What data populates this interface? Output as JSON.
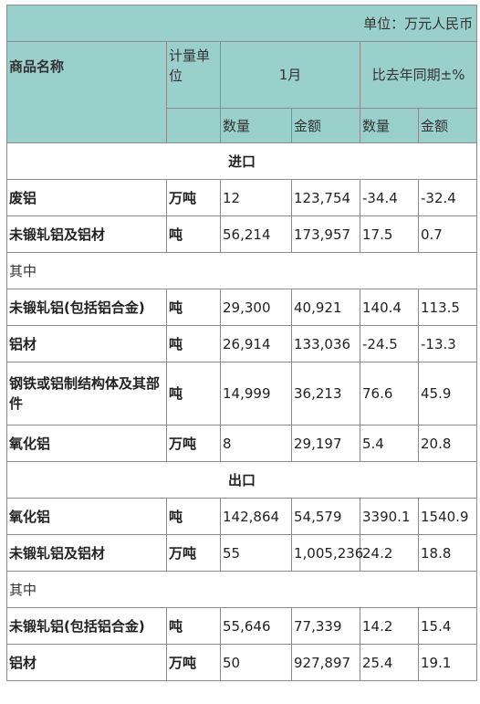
{
  "unit_label": "单位：万元人民币",
  "headers": {
    "name": "商品名称",
    "unit_col": "计量单位",
    "period": "1月",
    "yoy": "比去年同期±%",
    "qty": "数量",
    "amt": "金额",
    "qty2": "数量",
    "amt2": "金额"
  },
  "sections": [
    {
      "title": "进口",
      "rows": [
        {
          "name": "废铝",
          "unit": "万吨",
          "qty": "12",
          "amt": "123,754",
          "qty_pct": "-34.4",
          "amt_pct": "-32.4"
        },
        {
          "name": "未锻轧铝及铝材",
          "unit": "吨",
          "qty": "56,214",
          "amt": "173,957",
          "qty_pct": "17.5",
          "amt_pct": "0.7"
        },
        {
          "subhead": "其中"
        },
        {
          "name": "未锻轧铝(包括铝合金)",
          "unit": "吨",
          "qty": "29,300",
          "amt": "40,921",
          "qty_pct": "140.4",
          "amt_pct": "113.5"
        },
        {
          "name": "铝材",
          "unit": "吨",
          "qty": "26,914",
          "amt": "133,036",
          "qty_pct": "-24.5",
          "amt_pct": "-13.3"
        },
        {
          "name": "钢铁或铝制结构体及其部件",
          "unit": "吨",
          "qty": "14,999",
          "amt": "36,213",
          "qty_pct": "76.6",
          "amt_pct": "45.9",
          "tall": true
        },
        {
          "name": "氧化铝",
          "unit": "万吨",
          "qty": "8",
          "amt": "29,197",
          "qty_pct": "5.4",
          "amt_pct": "20.8"
        }
      ]
    },
    {
      "title": "出口",
      "rows": [
        {
          "name": "氧化铝",
          "unit": "吨",
          "qty": "142,864",
          "amt": "54,579",
          "qty_pct": "3390.1",
          "amt_pct": "1540.9"
        },
        {
          "name": "未锻轧铝及铝材",
          "unit": "万吨",
          "qty": "55",
          "amt": "1,005,236",
          "qty_pct": "24.2",
          "amt_pct": "18.8"
        },
        {
          "subhead": "其中"
        },
        {
          "name": "未锻轧铝(包括铝合金)",
          "unit": "吨",
          "qty": "55,646",
          "amt": "77,339",
          "qty_pct": "14.2",
          "amt_pct": "15.4"
        },
        {
          "name": "铝材",
          "unit": "万吨",
          "qty": "50",
          "amt": "927,897",
          "qty_pct": "25.4",
          "amt_pct": "19.1"
        }
      ]
    }
  ]
}
